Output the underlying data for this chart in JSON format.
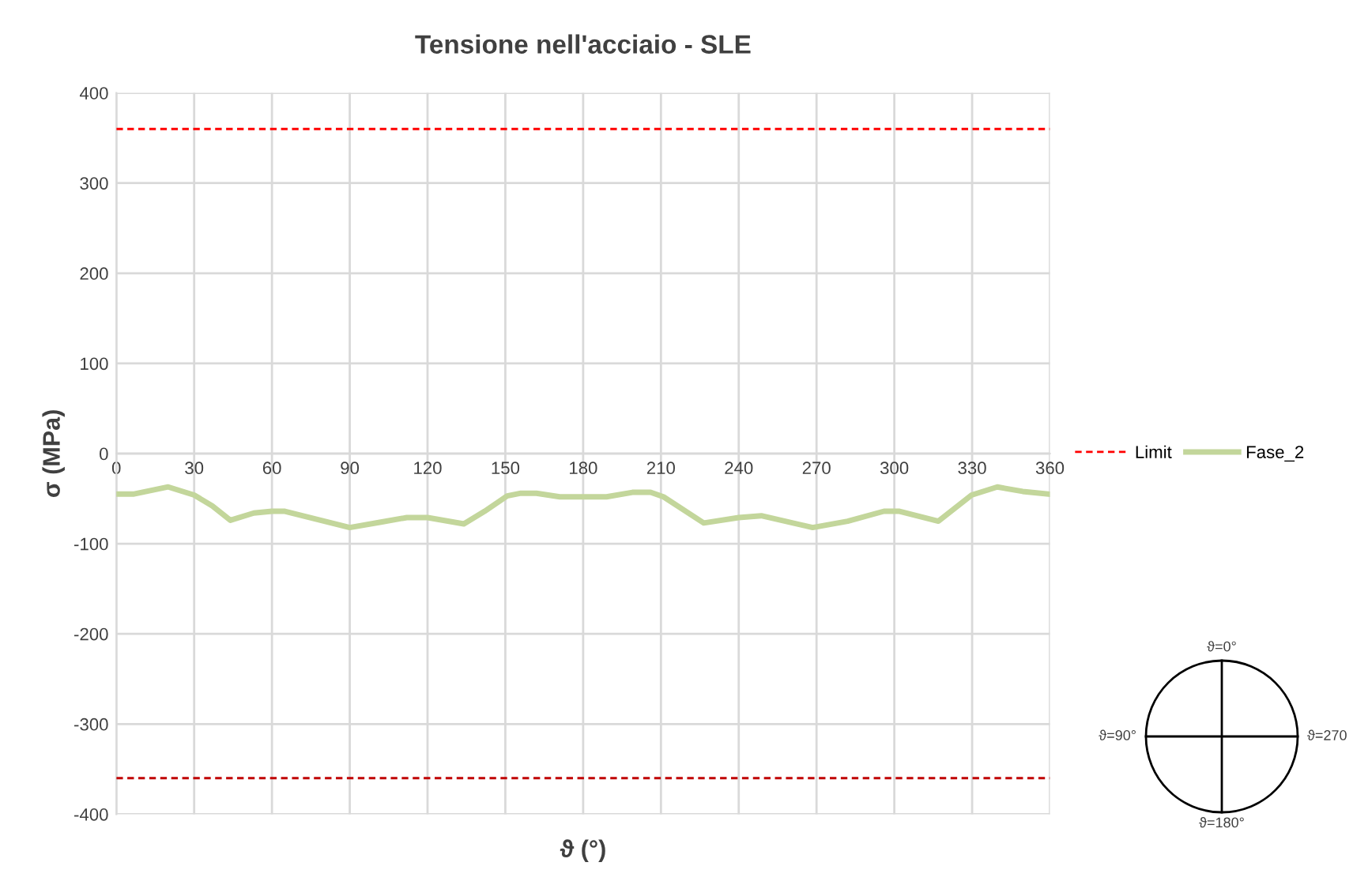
{
  "chart_data": {
    "type": "line",
    "title": "Tensione nell'acciaio - SLE",
    "xlabel": "ϑ (°)",
    "ylabel": "σ (MPa)",
    "series": [
      {
        "name": "Fase_2",
        "color": "#c3d69b",
        "x": [
          0,
          6.5,
          20,
          30,
          37,
          44,
          53,
          60,
          65,
          90,
          102,
          112,
          120,
          134,
          142,
          150.7,
          156,
          162,
          171,
          181.5,
          189,
          199,
          206,
          211,
          226.5,
          240,
          248.7,
          268.5,
          282,
          296,
          302,
          317,
          329.8,
          339.7,
          349.5,
          360
        ],
        "values": [
          -45,
          -45,
          -37,
          -46,
          -58,
          -74,
          -66,
          -64,
          -64,
          -82,
          -76,
          -71,
          -71,
          -78,
          -64,
          -47,
          -44,
          -44,
          -48,
          -48,
          -48,
          -43,
          -43,
          -48,
          -77,
          -71,
          -69,
          -82,
          -75,
          -64,
          -64,
          -75,
          -46,
          -37,
          -42,
          -45
        ]
      }
    ],
    "ref_lines": [
      {
        "axis": "y",
        "value": 360,
        "label": "Limit",
        "color": "#ff0000",
        "line_style": "dashed"
      },
      {
        "axis": "y",
        "value": -360,
        "color": "#c00000",
        "line_style": "dashed"
      }
    ],
    "xlim": [
      0,
      360
    ],
    "xticks": [
      0,
      30,
      60,
      90,
      120,
      150,
      180,
      210,
      240,
      270,
      300,
      330,
      360
    ],
    "ylim": [
      -400,
      400
    ],
    "yticks": [
      -400,
      -300,
      -200,
      -100,
      0,
      100,
      200,
      300,
      400
    ],
    "grid": true,
    "legend": "right",
    "marker": "none",
    "line_style": "solid",
    "annotations": [
      "ϑ=0°",
      "ϑ=90°",
      "ϑ=180°",
      "ϑ=270"
    ]
  }
}
